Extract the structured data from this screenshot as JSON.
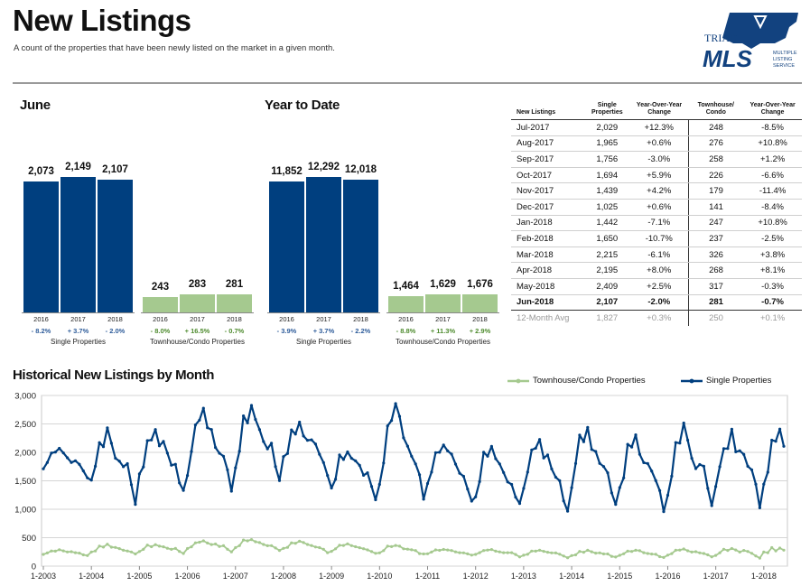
{
  "header": {
    "title": "New Listings",
    "subtitle": "A count of the properties that have been newly listed on the market in a given month."
  },
  "logo": {
    "top": "TRIAD",
    "main": "MLS",
    "side": [
      "MULTIPLE",
      "LISTING",
      "SERVICE"
    ]
  },
  "colors": {
    "single": "#003F7F",
    "townhouse": "#A5C98F",
    "positive": "#2E5C9A",
    "green_text": "#4E8B2E"
  },
  "chart_data": [
    {
      "type": "bar",
      "title": "June",
      "groups": [
        {
          "label": "Single Properties",
          "series_color": "single",
          "bars": [
            {
              "year": "2016",
              "value": 2073,
              "label": "2,073",
              "change": "- 8.2%"
            },
            {
              "year": "2017",
              "value": 2149,
              "label": "2,149",
              "change": "+ 3.7%"
            },
            {
              "year": "2018",
              "value": 2107,
              "label": "2,107",
              "change": "- 2.0%"
            }
          ]
        },
        {
          "label": "Townhouse/Condo Properties",
          "series_color": "townhouse",
          "bars": [
            {
              "year": "2016",
              "value": 243,
              "label": "243",
              "change": "- 8.0%"
            },
            {
              "year": "2017",
              "value": 283,
              "label": "283",
              "change": "+ 16.5%"
            },
            {
              "year": "2018",
              "value": 281,
              "label": "281",
              "change": "- 0.7%"
            }
          ]
        }
      ]
    },
    {
      "type": "bar",
      "title": "Year to Date",
      "groups": [
        {
          "label": "Single Properties",
          "series_color": "single",
          "bars": [
            {
              "year": "2016",
              "value": 11852,
              "label": "11,852",
              "change": "- 3.9%"
            },
            {
              "year": "2017",
              "value": 12292,
              "label": "12,292",
              "change": "+ 3.7%"
            },
            {
              "year": "2018",
              "value": 12018,
              "label": "12,018",
              "change": "- 2.2%"
            }
          ]
        },
        {
          "label": "Townhouse/Condo Properties",
          "series_color": "townhouse",
          "bars": [
            {
              "year": "2016",
              "value": 1464,
              "label": "1,464",
              "change": "- 8.8%"
            },
            {
              "year": "2017",
              "value": 1629,
              "label": "1,629",
              "change": "+ 11.3%"
            },
            {
              "year": "2018",
              "value": 1676,
              "label": "1,676",
              "change": "+ 2.9%"
            }
          ]
        }
      ]
    },
    {
      "type": "table",
      "columns": [
        "New Listings",
        "Single Properties",
        "Year-Over-Year Change",
        "Townhouse/ Condo",
        "Year-Over-Year Change"
      ],
      "rows": [
        [
          "Jul-2017",
          "2,029",
          "+12.3%",
          "248",
          "-8.5%"
        ],
        [
          "Aug-2017",
          "1,965",
          "+0.6%",
          "276",
          "+10.8%"
        ],
        [
          "Sep-2017",
          "1,756",
          "-3.0%",
          "258",
          "+1.2%"
        ],
        [
          "Oct-2017",
          "1,694",
          "+5.9%",
          "226",
          "-6.6%"
        ],
        [
          "Nov-2017",
          "1,439",
          "+4.2%",
          "179",
          "-11.4%"
        ],
        [
          "Dec-2017",
          "1,025",
          "+0.6%",
          "141",
          "-8.4%"
        ],
        [
          "Jan-2018",
          "1,442",
          "-7.1%",
          "247",
          "+10.8%"
        ],
        [
          "Feb-2018",
          "1,650",
          "-10.7%",
          "237",
          "-2.5%"
        ],
        [
          "Mar-2018",
          "2,215",
          "-6.1%",
          "326",
          "+3.8%"
        ],
        [
          "Apr-2018",
          "2,195",
          "+8.0%",
          "268",
          "+8.1%"
        ],
        [
          "May-2018",
          "2,409",
          "+2.5%",
          "317",
          "-0.3%"
        ],
        [
          "Jun-2018",
          "2,107",
          "-2.0%",
          "281",
          "-0.7%"
        ]
      ],
      "footer": [
        "12-Month Avg",
        "1,827",
        "+0.3%",
        "250",
        "+0.1%"
      ]
    },
    {
      "type": "line",
      "title": "Historical New Listings by Month",
      "x_start": "2003-01",
      "x_end": "2018-06",
      "x_ticks": [
        "1-2003",
        "1-2004",
        "1-2005",
        "1-2006",
        "1-2007",
        "1-2008",
        "1-2009",
        "1-2010",
        "1-2011",
        "1-2012",
        "1-2013",
        "1-2014",
        "1-2015",
        "1-2016",
        "1-2017",
        "1-2018"
      ],
      "y_ticks": [
        "0",
        "500",
        "1,000",
        "1,500",
        "2,000",
        "2,500",
        "3,000"
      ],
      "ylim": [
        0,
        3000
      ],
      "grid": true,
      "legend_position": "top-right",
      "series": [
        {
          "name": "Townhouse/Condo Properties",
          "color": "townhouse",
          "marker": "dot",
          "annual_peaks": [
            290,
            380,
            380,
            450,
            480,
            440,
            380,
            370,
            300,
            300,
            290,
            280,
            290,
            300,
            310,
            320
          ],
          "annual_troughs": [
            180,
            200,
            230,
            260,
            270,
            250,
            230,
            200,
            190,
            170,
            160,
            150,
            150,
            160,
            150,
            230
          ],
          "values_last_12": [
            248,
            276,
            258,
            226,
            179,
            141,
            247,
            237,
            326,
            268,
            317,
            281
          ]
        },
        {
          "name": "Single Properties",
          "color": "single",
          "marker": "dot",
          "annual_peaks": [
            2060,
            2350,
            2440,
            2750,
            2850,
            2550,
            2050,
            2830,
            2200,
            2100,
            2240,
            2430,
            2310,
            2400,
            2380,
            2409
          ],
          "annual_troughs": [
            1560,
            1160,
            1300,
            1300,
            1490,
            1630,
            1180,
            1140,
            1130,
            1020,
            1000,
            1080,
            1050,
            1000,
            1050,
            1025
          ],
          "values_last_12": [
            2029,
            1965,
            1756,
            1694,
            1439,
            1025,
            1442,
            1650,
            2215,
            2195,
            2409,
            2107
          ]
        }
      ]
    }
  ]
}
